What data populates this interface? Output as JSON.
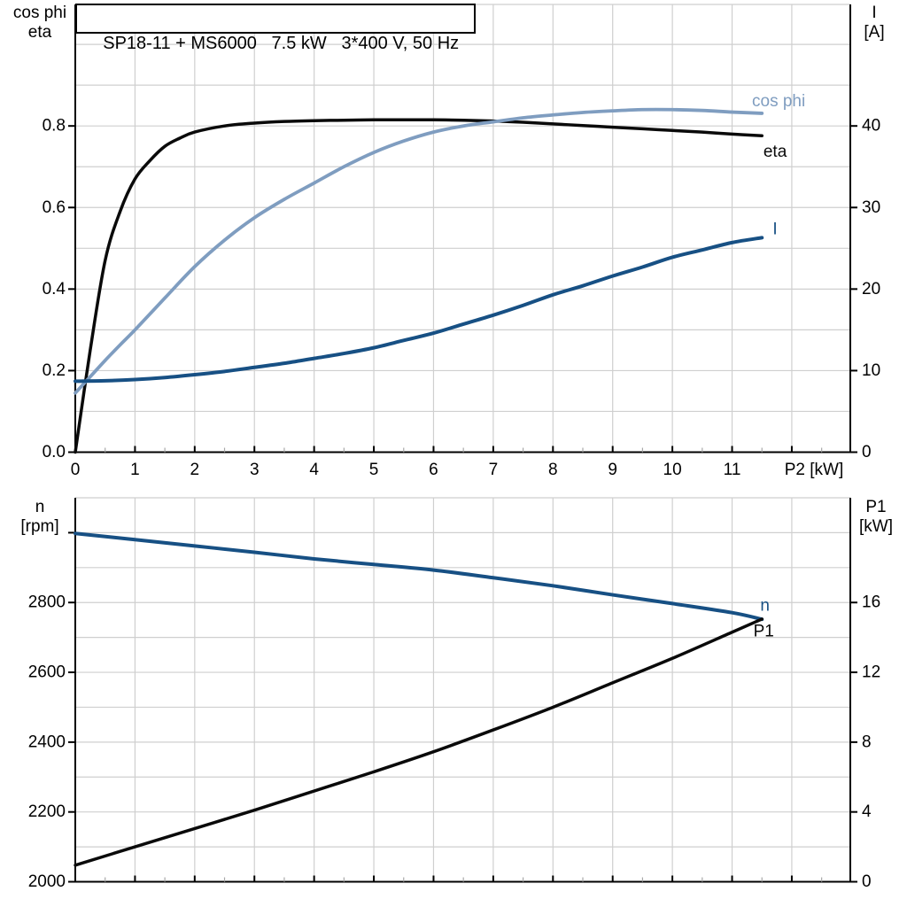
{
  "title": "SP18-11 + MS6000   7.5 kW   3*400 V, 50 Hz",
  "colors": {
    "background": "#ffffff",
    "axis": "#000000",
    "grid": "#cfcfcf",
    "minor_tick": "#a8a8a8",
    "black_curve": "#0a0a0a",
    "dark_blue": "#175084",
    "light_blue": "#7f9dc0"
  },
  "chart_data": [
    {
      "type": "line",
      "name": "motor-cosphi-eta-current",
      "x_axis": {
        "title": "P2 [kW]",
        "tick_values": [
          0,
          1,
          2,
          3,
          4,
          5,
          6,
          7,
          8,
          9,
          10,
          11
        ],
        "tick_labels": [
          "0",
          "1",
          "2",
          "3",
          "4",
          "5",
          "6",
          "7",
          "8",
          "9",
          "10",
          "11"
        ],
        "range": [
          0,
          12.98
        ],
        "grid_step": 1,
        "minor_tick_step": 0.5
      },
      "left_axis": {
        "title_lines": [
          "cos phi",
          "eta"
        ],
        "tick_values": [
          0,
          0.2,
          0.4,
          0.6,
          0.8
        ],
        "tick_labels": [
          "0.0",
          "0.2",
          "0.4",
          "0.6",
          "0.8"
        ],
        "range": [
          0,
          1.098
        ],
        "grid_step": 0.1
      },
      "right_axis": {
        "title_lines": [
          "I",
          "[A]"
        ],
        "tick_values": [
          0,
          10,
          20,
          30,
          40
        ],
        "tick_labels": [
          "0",
          "10",
          "20",
          "30",
          "40"
        ],
        "range": [
          0,
          54.9
        ],
        "grid_step": 5
      },
      "series": [
        {
          "name": "eta",
          "axis": "left",
          "color": "#0a0a0a",
          "width": 3.5,
          "points": [
            [
              0,
              0
            ],
            [
              0.25,
              0.25
            ],
            [
              0.5,
              0.47
            ],
            [
              0.75,
              0.59
            ],
            [
              1,
              0.67
            ],
            [
              1.25,
              0.715
            ],
            [
              1.5,
              0.75
            ],
            [
              1.75,
              0.77
            ],
            [
              2,
              0.785
            ],
            [
              2.5,
              0.8
            ],
            [
              3,
              0.807
            ],
            [
              3.5,
              0.811
            ],
            [
              4,
              0.813
            ],
            [
              4.5,
              0.814
            ],
            [
              5,
              0.815
            ],
            [
              5.5,
              0.815
            ],
            [
              6,
              0.815
            ],
            [
              6.5,
              0.814
            ],
            [
              7,
              0.812
            ],
            [
              7.5,
              0.809
            ],
            [
              8,
              0.805
            ],
            [
              8.5,
              0.801
            ],
            [
              9,
              0.797
            ],
            [
              9.5,
              0.793
            ],
            [
              10,
              0.789
            ],
            [
              10.5,
              0.785
            ],
            [
              11,
              0.78
            ],
            [
              11.5,
              0.776
            ]
          ]
        },
        {
          "name": "cos phi",
          "axis": "left",
          "color": "#7f9dc0",
          "width": 3.8,
          "points": [
            [
              0,
              0.145
            ],
            [
              0.25,
              0.185
            ],
            [
              0.5,
              0.225
            ],
            [
              0.75,
              0.263
            ],
            [
              1,
              0.3
            ],
            [
              1.5,
              0.378
            ],
            [
              2,
              0.455
            ],
            [
              2.5,
              0.52
            ],
            [
              3,
              0.575
            ],
            [
              3.5,
              0.62
            ],
            [
              4,
              0.66
            ],
            [
              4.5,
              0.7
            ],
            [
              5,
              0.735
            ],
            [
              5.5,
              0.763
            ],
            [
              6,
              0.785
            ],
            [
              6.5,
              0.8
            ],
            [
              7,
              0.81
            ],
            [
              7.5,
              0.82
            ],
            [
              8,
              0.827
            ],
            [
              8.5,
              0.833
            ],
            [
              9,
              0.837
            ],
            [
              9.5,
              0.84
            ],
            [
              10,
              0.84
            ],
            [
              10.5,
              0.838
            ],
            [
              11,
              0.834
            ],
            [
              11.5,
              0.831
            ]
          ]
        },
        {
          "name": "I",
          "axis": "right",
          "color": "#175084",
          "width": 4,
          "points": [
            [
              0,
              8.7
            ],
            [
              0.5,
              8.75
            ],
            [
              1,
              8.9
            ],
            [
              1.5,
              9.15
            ],
            [
              2,
              9.5
            ],
            [
              2.5,
              9.9
            ],
            [
              3,
              10.4
            ],
            [
              3.5,
              10.9
            ],
            [
              4,
              11.5
            ],
            [
              4.5,
              12.1
            ],
            [
              5,
              12.8
            ],
            [
              5.5,
              13.7
            ],
            [
              6,
              14.6
            ],
            [
              6.5,
              15.7
            ],
            [
              7,
              16.8
            ],
            [
              7.5,
              18.0
            ],
            [
              8,
              19.3
            ],
            [
              8.5,
              20.4
            ],
            [
              9,
              21.6
            ],
            [
              9.5,
              22.7
            ],
            [
              10,
              23.9
            ],
            [
              10.5,
              24.8
            ],
            [
              11,
              25.7
            ],
            [
              11.5,
              26.3
            ]
          ]
        }
      ],
      "annotations": [
        {
          "text": "cos phi",
          "color": "#7f9dc0",
          "axis": "left",
          "x": 11.78,
          "y": 0.848
        },
        {
          "text": "eta",
          "color": "#0a0a0a",
          "axis": "left",
          "x": 11.72,
          "y": 0.724
        },
        {
          "text": "I",
          "color": "#175084",
          "axis": "right",
          "x": 11.72,
          "y": 26.7
        }
      ]
    },
    {
      "type": "line",
      "name": "speed-input-power",
      "x_axis": {
        "title": "",
        "tick_values": [
          0,
          1,
          2,
          3,
          4,
          5,
          6,
          7,
          8,
          9,
          10,
          11
        ],
        "tick_labels": [],
        "range": [
          0,
          12.98
        ],
        "grid_step": 1,
        "minor_tick_step": 0.5
      },
      "left_axis": {
        "title_lines": [
          "n",
          "[rpm]"
        ],
        "tick_values": [
          2000,
          2200,
          2400,
          2600,
          2800
        ],
        "tick_labels": [
          "2000",
          "2200",
          "2400",
          "2600",
          "2800"
        ],
        "extra_tick_value": 3000,
        "range": [
          2000,
          3100
        ],
        "grid_step": 100
      },
      "right_axis": {
        "title_lines": [
          "P1",
          "[kW]"
        ],
        "tick_values": [
          0,
          4,
          8,
          12,
          16
        ],
        "tick_labels": [
          "0",
          "4",
          "8",
          "12",
          "16"
        ],
        "range": [
          0,
          22
        ],
        "grid_step": 2
      },
      "series": [
        {
          "name": "n",
          "axis": "left",
          "color": "#175084",
          "width": 4,
          "points": [
            [
              0,
              2998
            ],
            [
              1,
              2980
            ],
            [
              2,
              2962
            ],
            [
              3,
              2944
            ],
            [
              4,
              2925
            ],
            [
              5,
              2909
            ],
            [
              6,
              2893
            ],
            [
              7,
              2871
            ],
            [
              8,
              2848
            ],
            [
              9,
              2822
            ],
            [
              10,
              2797
            ],
            [
              11,
              2771
            ],
            [
              11.5,
              2752
            ]
          ]
        },
        {
          "name": "P1",
          "axis": "right",
          "color": "#0a0a0a",
          "width": 3.5,
          "points": [
            [
              0,
              0.95
            ],
            [
              1,
              2.0
            ],
            [
              2,
              3.05
            ],
            [
              3,
              4.1
            ],
            [
              4,
              5.2
            ],
            [
              5,
              6.3
            ],
            [
              6,
              7.45
            ],
            [
              7,
              8.7
            ],
            [
              8,
              10.0
            ],
            [
              9,
              11.4
            ],
            [
              10,
              12.8
            ],
            [
              11,
              14.3
            ],
            [
              11.5,
              15.05
            ]
          ]
        }
      ],
      "annotations": [
        {
          "text": "n",
          "color": "#175084",
          "axis": "left",
          "x": 11.55,
          "y": 2777
        },
        {
          "text": "P1",
          "color": "#0a0a0a",
          "axis": "right",
          "x": 11.53,
          "y": 14.05
        }
      ]
    }
  ]
}
